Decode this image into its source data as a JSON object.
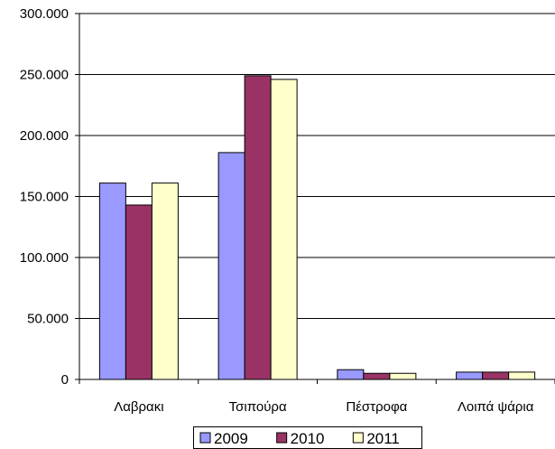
{
  "chart_data": {
    "type": "bar",
    "categories": [
      "Λαβρακι",
      "Τσιπούρα",
      "Πέστροφα",
      "Λοιπά ψάρια"
    ],
    "series": [
      {
        "name": "2009",
        "values": [
          161000,
          186000,
          8000,
          6000
        ],
        "color": "#9999FF"
      },
      {
        "name": "2010",
        "values": [
          143000,
          249000,
          5000,
          6000
        ],
        "color": "#993366"
      },
      {
        "name": "2011",
        "values": [
          161000,
          246000,
          5000,
          6000
        ],
        "color": "#FFFFCC"
      }
    ],
    "ylim": [
      0,
      300000
    ],
    "yticks": [
      0,
      50000,
      100000,
      150000,
      200000,
      250000,
      300000
    ],
    "ytick_labels": [
      "0",
      "50.000",
      "100.000",
      "150.000",
      "200.000",
      "250.000",
      "300.000"
    ],
    "grid": true,
    "legend_position": "bottom",
    "title": "",
    "xlabel": "",
    "ylabel": ""
  }
}
